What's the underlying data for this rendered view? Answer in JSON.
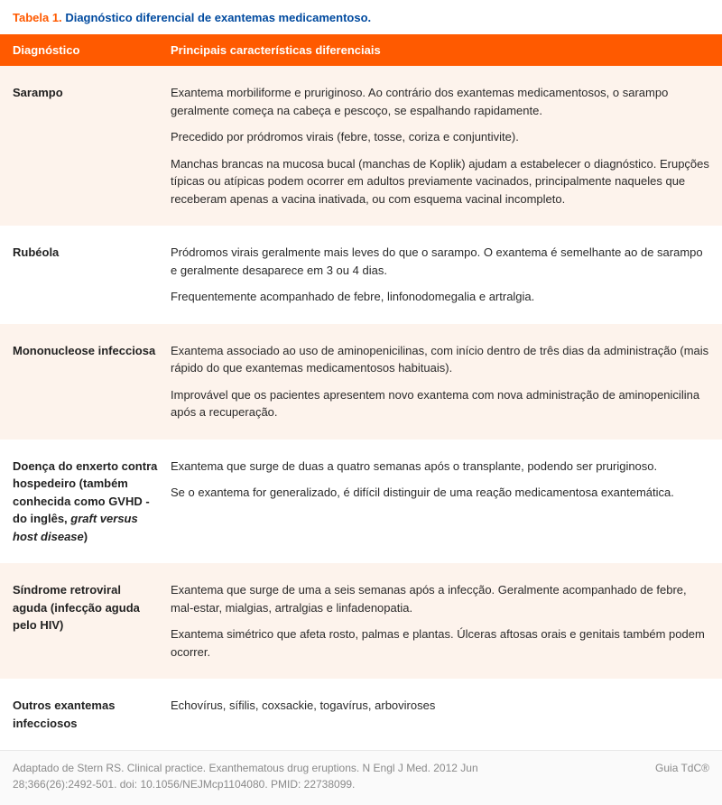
{
  "caption": {
    "label": "Tabela 1.",
    "title": "Diagnóstico diferencial de exantemas medicamentoso."
  },
  "headers": {
    "diag": "Diagnóstico",
    "char": "Principais características diferenciais"
  },
  "rows": [
    {
      "shade": true,
      "diag_parts": [
        {
          "text": "Sarampo",
          "italic": false
        }
      ],
      "chars": [
        "Exantema morbiliforme e pruriginoso. Ao contrário dos exantemas medicamentosos, o sarampo geralmente começa na cabeça e pescoço, se espalhando rapidamente.",
        "Precedido por pródromos virais (febre, tosse, coriza e conjuntivite).",
        "Manchas brancas na mucosa bucal (manchas de Koplik) ajudam a estabelecer o diagnóstico. Erupções típicas ou atípicas podem ocorrer em adultos previamente vacinados, principalmente naqueles que receberam apenas a vacina inativada, ou com esquema vacinal incompleto."
      ]
    },
    {
      "shade": false,
      "diag_parts": [
        {
          "text": "Rubéola",
          "italic": false
        }
      ],
      "chars": [
        "Pródromos virais geralmente mais leves do que o sarampo. O exantema é semelhante ao de sarampo e geralmente desaparece em 3 ou 4 dias.",
        "Frequentemente acompanhado de febre, linfonodomegalia e artralgia."
      ]
    },
    {
      "shade": true,
      "diag_parts": [
        {
          "text": "Mononucleose infecciosa",
          "italic": false
        }
      ],
      "chars": [
        "Exantema associado ao uso de aminopenicilinas, com início dentro de três dias da administração (mais rápido do que exantemas medicamentosos habituais).",
        "Improvável que os pacientes apresentem novo exantema com nova administração de aminopenicilina após a recuperação."
      ]
    },
    {
      "shade": false,
      "diag_parts": [
        {
          "text": "Doença do enxerto contra hospedeiro (também conhecida como GVHD - do inglês, ",
          "italic": false
        },
        {
          "text": "graft versus host disease",
          "italic": true
        },
        {
          "text": ")",
          "italic": false
        }
      ],
      "chars": [
        "Exantema que surge de duas a quatro semanas após o transplante, podendo ser pruriginoso.",
        "Se o exantema for generalizado, é difícil distinguir de uma reação medicamentosa exantemática."
      ]
    },
    {
      "shade": true,
      "diag_parts": [
        {
          "text": "Síndrome retroviral aguda (infecção aguda pelo HIV)",
          "italic": false
        }
      ],
      "chars": [
        "Exantema que surge de uma a seis semanas após a infecção. Geralmente acompanhado de febre, mal-estar, mialgias, artralgias e linfadenopatia.",
        "Exantema simétrico que afeta rosto, palmas e plantas. Úlceras aftosas orais e genitais também podem ocorrer."
      ]
    },
    {
      "shade": false,
      "diag_parts": [
        {
          "text": "Outros exantemas infecciosos",
          "italic": false
        }
      ],
      "chars": [
        "Echovírus, sífilis, coxsackie, togavírus, arboviroses"
      ]
    }
  ],
  "footer": {
    "citation": "Adaptado de Stern RS. Clinical practice. Exanthematous drug eruptions. N Engl J Med. 2012 Jun 28;366(26):2492-501. doi: 10.1056/NEJMcp1104080. PMID: 22738099.",
    "brand": "Guia TdC®"
  },
  "colors": {
    "accent": "#ff5a00",
    "title_blue": "#004a9f",
    "shade_bg": "#fdf3ec",
    "text": "#2a2a2a",
    "footer_text": "#8a8a8a",
    "footer_bg": "#fafafa",
    "white": "#ffffff"
  }
}
